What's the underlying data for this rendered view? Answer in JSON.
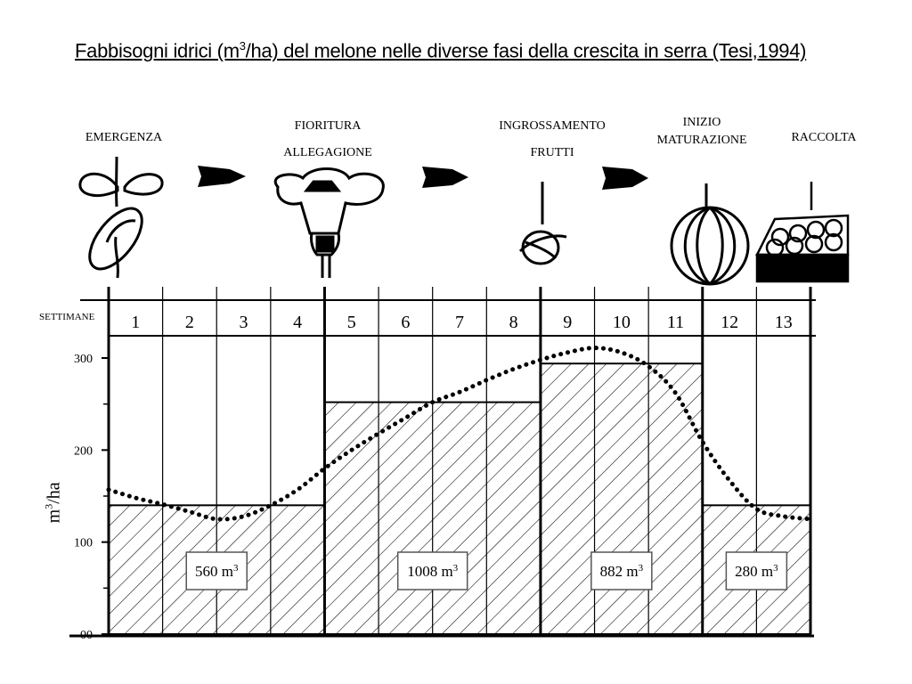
{
  "title": {
    "before": "Fabbisogni idrici (m",
    "sup": "3",
    "after": "/ha) del melone nelle diverse fasi della crescita in serra (Tesi,1994)"
  },
  "stages": [
    {
      "line1": "EMERGENZA",
      "line2": ""
    },
    {
      "line1": "FIORITURA",
      "line2": "ALLEGAGIONE"
    },
    {
      "line1": "INGROSSAMENTO",
      "line2": "FRUTTI"
    },
    {
      "line1": "INIZIO",
      "line2": "MATURAZIONE"
    },
    {
      "line1": "RACCOLTA",
      "line2": ""
    }
  ],
  "icons": [
    "seedling-icon",
    "flower-icon",
    "small-fruit-icon",
    "melon-icon",
    "harvest-crate-icon"
  ],
  "colors": {
    "ink": "#000000",
    "background": "#ffffff",
    "box_border": "#555555"
  },
  "chart_data": {
    "type": "bar",
    "xlabel": "SETTIMANE",
    "ylabel_base": "m",
    "ylabel_sup": "3",
    "ylabel_rest": "/ha",
    "ylim": [
      0,
      300
    ],
    "yticks": [
      {
        "value": 0,
        "label": "00"
      },
      {
        "value": 100,
        "label": "100"
      },
      {
        "value": 200,
        "label": "200"
      },
      {
        "value": 300,
        "label": "300"
      }
    ],
    "weeks": [
      "1",
      "2",
      "3",
      "4",
      "5",
      "6",
      "7",
      "8",
      "9",
      "10",
      "11",
      "12",
      "13"
    ],
    "phases": [
      {
        "from_week": 1,
        "to_week": 4,
        "value": 140,
        "total_label": "560 m",
        "total_sup": "3"
      },
      {
        "from_week": 5,
        "to_week": 8,
        "value": 252,
        "total_label": "1008 m",
        "total_sup": "3"
      },
      {
        "from_week": 9,
        "to_week": 11,
        "value": 294,
        "total_label": "882 m",
        "total_sup": "3"
      },
      {
        "from_week": 12,
        "to_week": 13,
        "value": 140,
        "total_label": "280 m",
        "total_sup": "3"
      }
    ],
    "curve": {
      "style": "dotted",
      "x": [
        0.0,
        0.5,
        1.0,
        1.5,
        2.0,
        2.5,
        3.0,
        3.5,
        4.0,
        4.5,
        5.0,
        5.5,
        6.0,
        6.5,
        7.0,
        7.5,
        8.0,
        8.5,
        9.0,
        9.5,
        10.0,
        10.5,
        11.0,
        11.5,
        12.0,
        12.5,
        13.0
      ],
      "y": [
        157,
        148,
        141,
        133,
        125,
        128,
        140,
        157,
        180,
        200,
        218,
        235,
        252,
        263,
        276,
        288,
        298,
        306,
        311,
        306,
        291,
        262,
        209,
        167,
        136,
        128,
        125
      ]
    }
  }
}
